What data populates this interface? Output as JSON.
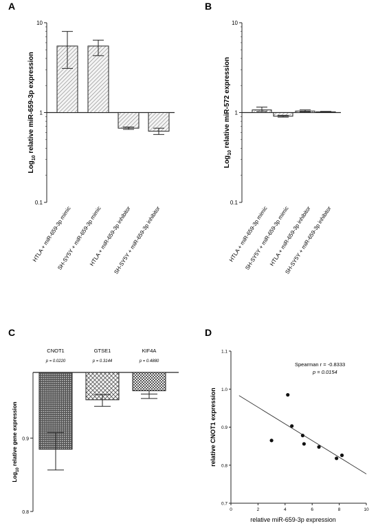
{
  "chart_data": [
    {
      "panel": "A",
      "type": "bar",
      "yscale": "log",
      "ylim": [
        0.1,
        10
      ],
      "baseline": 1,
      "y_ticks": [
        "10",
        "1",
        "0.1"
      ],
      "ylabel": {
        "pre": "Log",
        "sub": "10",
        "post": " relative miR-659-3p expression"
      },
      "categories": [
        "HTLA + miR-659-3p mimic",
        "SH-SY5Y + miR-659-3p mimic",
        "HTLA + miR-659-3p inhibitor",
        "SH-SY5Y + miR-659-3p inhibitor"
      ],
      "values": [
        5.5,
        5.5,
        0.67,
        0.62
      ],
      "err_low": [
        3.1,
        4.3,
        0.65,
        0.57
      ],
      "err_high": [
        8.0,
        6.4,
        0.69,
        0.67
      ]
    },
    {
      "panel": "B",
      "type": "bar",
      "yscale": "log",
      "ylim": [
        0.1,
        10
      ],
      "baseline": 1,
      "y_ticks": [
        "10",
        "1",
        "0.1"
      ],
      "ylabel": {
        "pre": "Log",
        "sub": "10",
        "post": " relative miR-572 expression"
      },
      "categories": [
        "HTLA + miR-659-3p mimic",
        "SH-SY5Y + miR-659-3p mimic",
        "HTLA + miR-659-3p inhibitor",
        "SH-SY5Y + miR-659-3p inhibitor"
      ],
      "values": [
        1.07,
        0.91,
        1.04,
        1.02
      ],
      "err_low": [
        1.03,
        0.89,
        1.02,
        1.01
      ],
      "err_high": [
        1.15,
        0.93,
        1.07,
        1.03
      ]
    },
    {
      "panel": "C",
      "type": "bar",
      "yscale": "log",
      "ylim": [
        0.8,
        1.0
      ],
      "baseline": 1.0,
      "y_ticks": [
        "0.9",
        "0.8"
      ],
      "y_tick_values": [
        0.9,
        0.8
      ],
      "ylabel": {
        "pre": "Log",
        "sub": "10",
        "post": " relative gene expression"
      },
      "categories": [
        "CNOT1",
        "GTSE1",
        "KIF4A"
      ],
      "p_values": [
        "p = 0.0220",
        "p = 0.3144",
        "p = 0.4880"
      ],
      "values": [
        0.884,
        0.957,
        0.971
      ],
      "err_low": [
        0.855,
        0.947,
        0.959
      ],
      "err_high": [
        0.908,
        0.965,
        0.966
      ]
    },
    {
      "panel": "D",
      "type": "scatter",
      "xlabel": "relative miR-659-3p expression",
      "ylabel": "relative CNOT1 expression",
      "xlim": [
        0,
        10
      ],
      "ylim": [
        0.7,
        1.1
      ],
      "x_ticks": [
        0,
        2,
        4,
        6,
        8,
        10
      ],
      "y_ticks": [
        "0.7",
        "0.8",
        "0.9",
        "1.0",
        "1.1"
      ],
      "points": [
        {
          "x": 3.0,
          "y": 0.865
        },
        {
          "x": 4.2,
          "y": 0.985
        },
        {
          "x": 4.5,
          "y": 0.903
        },
        {
          "x": 5.3,
          "y": 0.878
        },
        {
          "x": 5.4,
          "y": 0.856
        },
        {
          "x": 6.5,
          "y": 0.848
        },
        {
          "x": 7.8,
          "y": 0.818
        },
        {
          "x": 8.2,
          "y": 0.826
        }
      ],
      "fit": {
        "x1": 0.6,
        "y1": 0.983,
        "x2": 10,
        "y2": 0.777
      },
      "annotation": {
        "line1": "Spearman r = -0.8333",
        "line2": "p = 0.0154"
      }
    }
  ],
  "panel_labels": [
    "A",
    "B",
    "C",
    "D"
  ]
}
